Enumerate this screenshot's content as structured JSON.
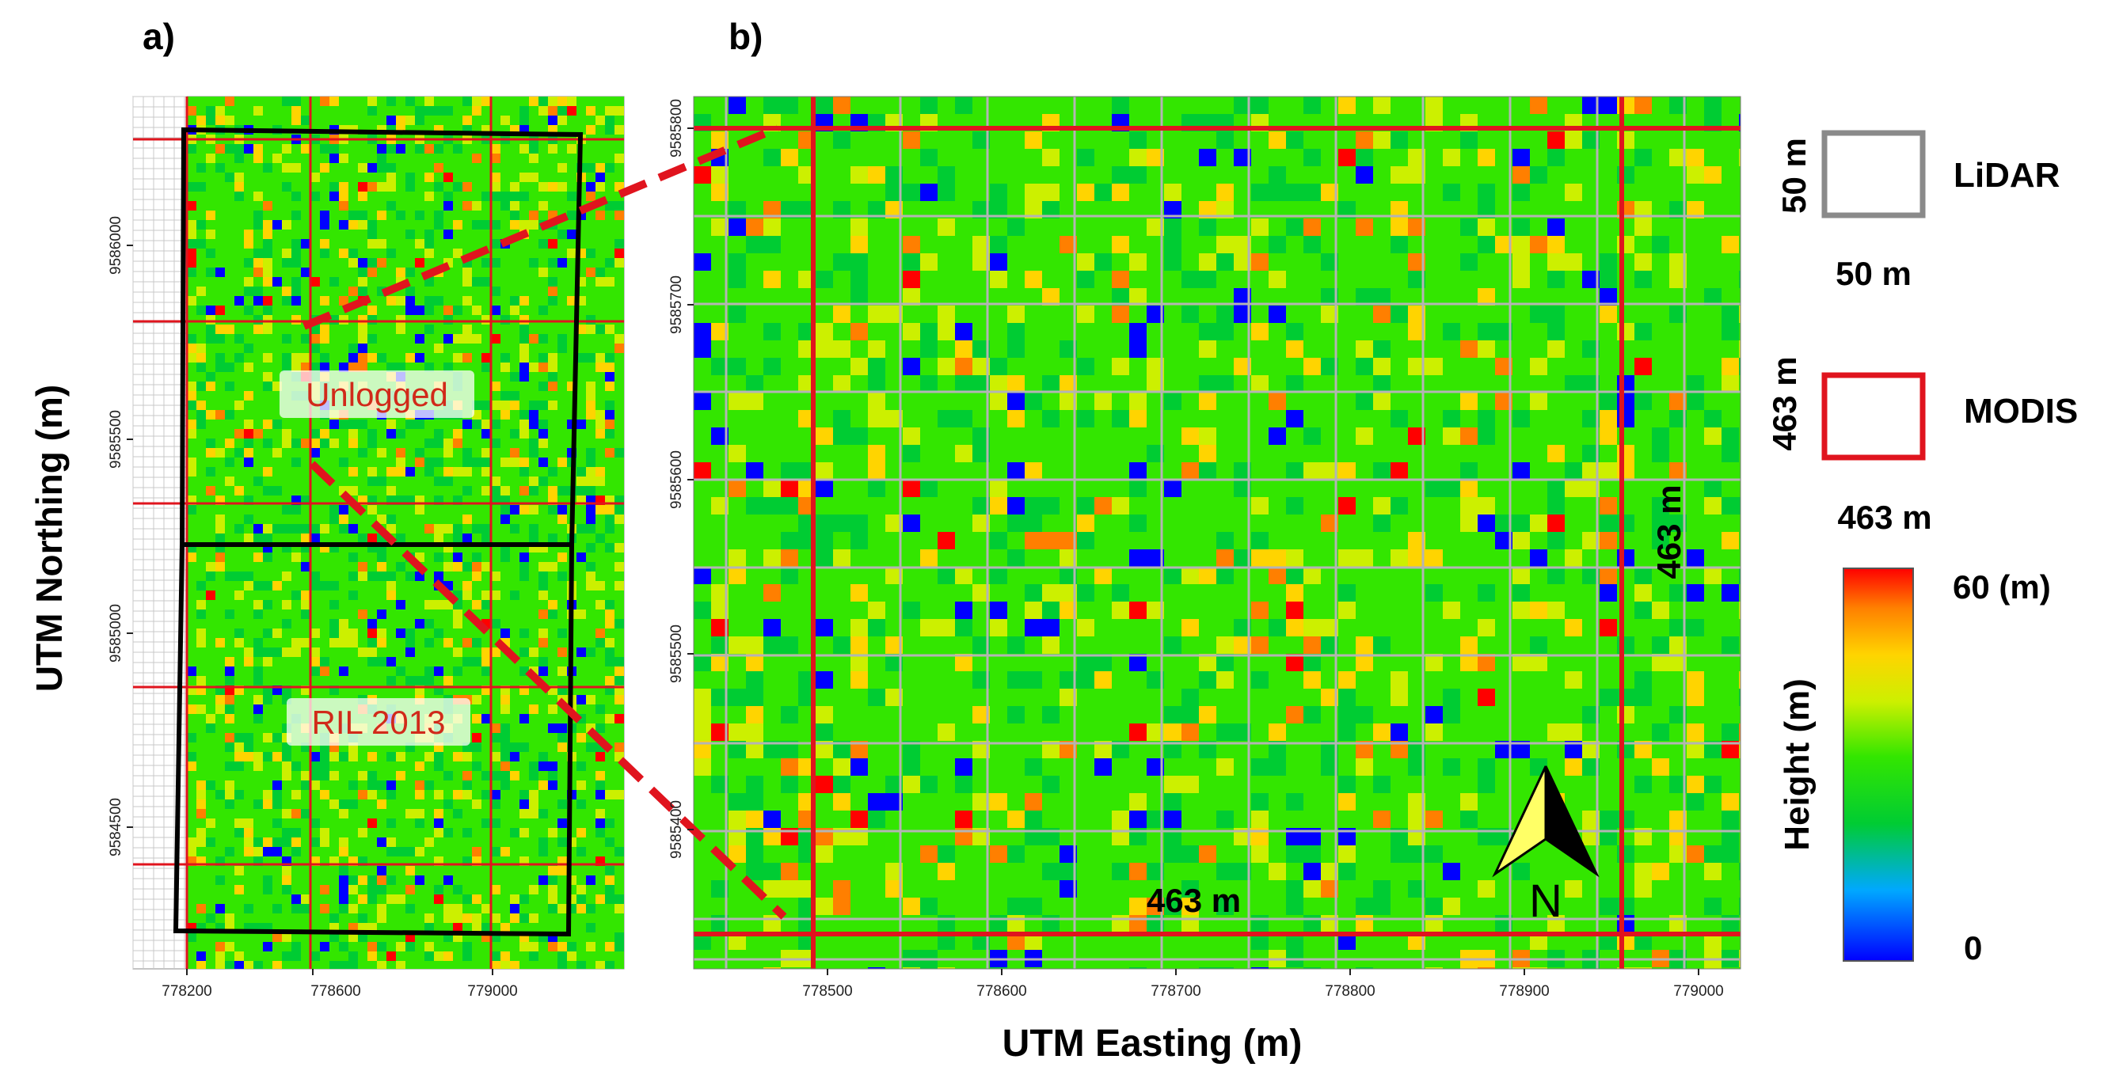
{
  "panels": {
    "a": {
      "label": "a)"
    },
    "b": {
      "label": "b)"
    }
  },
  "panel_a": {
    "ylabel": "UTM Northing (m)",
    "y_ticks": [
      "9586000",
      "9585500",
      "9585000",
      "9584500"
    ],
    "x_ticks": [
      "778200",
      "778600",
      "779000"
    ],
    "zones": [
      "Unlogged",
      "RIL 2013"
    ]
  },
  "panel_b": {
    "xlabel": "UTM Easting (m)",
    "x_ticks": [
      "778500",
      "778600",
      "778700",
      "778800",
      "778900",
      "779000"
    ],
    "y_ticks": [
      "9585800",
      "9585700",
      "9585600",
      "9585500",
      "9585400"
    ],
    "dim_horizontal": "463 m",
    "dim_vertical": "463 m",
    "north_label": "N"
  },
  "legend": {
    "lidar": {
      "name": "LiDAR",
      "side": "50 m",
      "bottom": "50 m"
    },
    "modis": {
      "name": "MODIS",
      "side": "463 m",
      "bottom": "463 m"
    },
    "colorbar": {
      "title": "Height (m)",
      "max": "60 (m)",
      "min": "0"
    }
  },
  "colors": {
    "modis_grid": "#e0141e",
    "lidar_grid": "#b4b4b4",
    "plot_outline": "#000000",
    "colormap": [
      "#0000ff",
      "#00cc33",
      "#33e600",
      "#ccf000",
      "#ffd400",
      "#ff7f00",
      "#ff0000"
    ]
  }
}
